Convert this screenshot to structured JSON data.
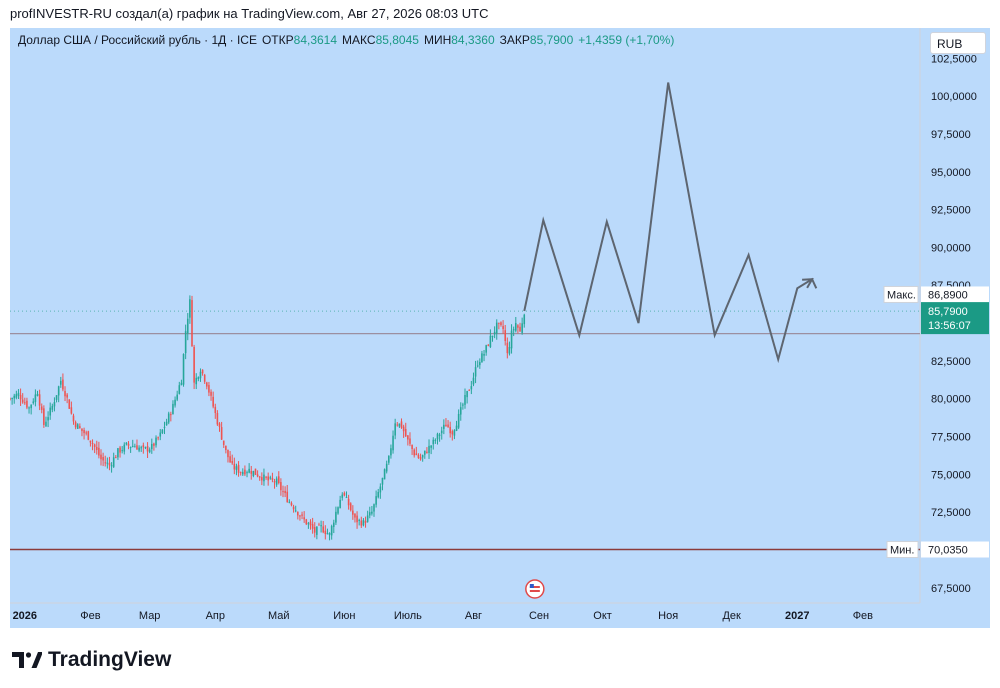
{
  "header": {
    "attribution": "profINVESTR-RU создал(а) график на TradingView.com, Авг 27, 2026 08:03 UTC"
  },
  "legend": {
    "symbol": "Доллар США / Российский рубль · 1Д · ICE",
    "open_label": "ОТКР",
    "open_value": "84,3614",
    "high_label": "МАКС",
    "high_value": "85,8045",
    "low_label": "МИН",
    "low_value": "84,3360",
    "close_label": "ЗАКР",
    "close_value": "85,7900",
    "change": "+1,4359 (+1,70%)"
  },
  "currency_button": "RUB",
  "price_labels": {
    "max_label": "Макс.",
    "max_value": "86,8900",
    "current_value": "85,7900",
    "countdown": "13:56:07",
    "min_label": "Мин.",
    "min_value": "70,0350"
  },
  "logo_text": "TradingView",
  "colors": {
    "background": "#bbdafb",
    "up": "#26a69a",
    "down": "#ef5350",
    "projection": "#5d6570",
    "min_line": "#8b3a3a",
    "level_line": "#9c8fa0",
    "current_badge": "#1b9a85"
  },
  "chart_data": {
    "type": "candlestick",
    "title": "Доллар США / Российский рубль · 1Д · ICE",
    "currency": "RUB",
    "y_ticks": [
      "102,5000",
      "100,0000",
      "97,5000",
      "95,0000",
      "92,5000",
      "90,0000",
      "87,5000",
      "82,5000",
      "80,0000",
      "77,5000",
      "75,0000",
      "72,5000",
      "70,0000",
      "67,5000"
    ],
    "ylim": [
      66.5,
      104.5
    ],
    "x_ticks": [
      {
        "label": "2026",
        "date": "2026-01-01",
        "bold": true
      },
      {
        "label": "Фев",
        "date": "2026-02-01"
      },
      {
        "label": "Мар",
        "date": "2026-03-01"
      },
      {
        "label": "Апр",
        "date": "2026-04-01"
      },
      {
        "label": "Май",
        "date": "2026-05-01"
      },
      {
        "label": "Июн",
        "date": "2026-06-01"
      },
      {
        "label": "Июль",
        "date": "2026-07-01"
      },
      {
        "label": "Авг",
        "date": "2026-08-01"
      },
      {
        "label": "Сен",
        "date": "2026-09-01"
      },
      {
        "label": "Окт",
        "date": "2026-10-01"
      },
      {
        "label": "Ноя",
        "date": "2026-11-01"
      },
      {
        "label": "Дек",
        "date": "2026-12-01"
      },
      {
        "label": "2027",
        "date": "2027-01-01",
        "bold": true
      },
      {
        "label": "Фев",
        "date": "2027-02-01"
      }
    ],
    "xlim": [
      "2025-12-25",
      "2027-02-28"
    ],
    "price_path": [
      {
        "date": "2025-12-25",
        "close": 80.0
      },
      {
        "date": "2025-12-29",
        "close": 80.3
      },
      {
        "date": "2026-01-03",
        "close": 79.4
      },
      {
        "date": "2026-01-07",
        "close": 80.5
      },
      {
        "date": "2026-01-10",
        "close": 78.3
      },
      {
        "date": "2026-01-14",
        "close": 79.5
      },
      {
        "date": "2026-01-18",
        "close": 81.2
      },
      {
        "date": "2026-01-21",
        "close": 80.0
      },
      {
        "date": "2026-01-24",
        "close": 78.5
      },
      {
        "date": "2026-01-27",
        "close": 78.0
      },
      {
        "date": "2026-01-31",
        "close": 77.5
      },
      {
        "date": "2026-02-03",
        "close": 76.8
      },
      {
        "date": "2026-02-06",
        "close": 76.0
      },
      {
        "date": "2026-02-10",
        "close": 75.6
      },
      {
        "date": "2026-02-14",
        "close": 76.5
      },
      {
        "date": "2026-02-18",
        "close": 76.9
      },
      {
        "date": "2026-02-22",
        "close": 76.9
      },
      {
        "date": "2026-02-26",
        "close": 76.6
      },
      {
        "date": "2026-03-02",
        "close": 76.8
      },
      {
        "date": "2026-03-06",
        "close": 77.6
      },
      {
        "date": "2026-03-09",
        "close": 78.5
      },
      {
        "date": "2026-03-12",
        "close": 79.5
      },
      {
        "date": "2026-03-16",
        "close": 81.3
      },
      {
        "date": "2026-03-18",
        "close": 84.5
      },
      {
        "date": "2026-03-20",
        "close": 86.4
      },
      {
        "date": "2026-03-22",
        "close": 81.0
      },
      {
        "date": "2026-03-25",
        "close": 82.0
      },
      {
        "date": "2026-03-28",
        "close": 81.0
      },
      {
        "date": "2026-03-31",
        "close": 79.5
      },
      {
        "date": "2026-04-03",
        "close": 78.0
      },
      {
        "date": "2026-04-06",
        "close": 76.5
      },
      {
        "date": "2026-04-09",
        "close": 75.5
      },
      {
        "date": "2026-04-13",
        "close": 75.2
      },
      {
        "date": "2026-04-17",
        "close": 75.3
      },
      {
        "date": "2026-04-21",
        "close": 75.0
      },
      {
        "date": "2026-04-26",
        "close": 74.6
      },
      {
        "date": "2026-04-30",
        "close": 74.5
      },
      {
        "date": "2026-05-03",
        "close": 73.8
      },
      {
        "date": "2026-05-06",
        "close": 73.2
      },
      {
        "date": "2026-05-09",
        "close": 72.7
      },
      {
        "date": "2026-05-12",
        "close": 72.1
      },
      {
        "date": "2026-05-15",
        "close": 71.7
      },
      {
        "date": "2026-05-18",
        "close": 71.2
      },
      {
        "date": "2026-05-21",
        "close": 71.5
      },
      {
        "date": "2026-05-25",
        "close": 71.0
      },
      {
        "date": "2026-05-28",
        "close": 72.5
      },
      {
        "date": "2026-05-31",
        "close": 73.8
      },
      {
        "date": "2026-06-03",
        "close": 73.0
      },
      {
        "date": "2026-06-06",
        "close": 72.0
      },
      {
        "date": "2026-06-10",
        "close": 71.8
      },
      {
        "date": "2026-06-14",
        "close": 72.5
      },
      {
        "date": "2026-06-18",
        "close": 74.2
      },
      {
        "date": "2026-06-22",
        "close": 76.0
      },
      {
        "date": "2026-06-25",
        "close": 78.5
      },
      {
        "date": "2026-06-28",
        "close": 78.2
      },
      {
        "date": "2026-07-01",
        "close": 77.2
      },
      {
        "date": "2026-07-04",
        "close": 76.4
      },
      {
        "date": "2026-07-07",
        "close": 76.0
      },
      {
        "date": "2026-07-10",
        "close": 76.6
      },
      {
        "date": "2026-07-13",
        "close": 77.1
      },
      {
        "date": "2026-07-16",
        "close": 77.7
      },
      {
        "date": "2026-07-19",
        "close": 78.3
      },
      {
        "date": "2026-07-22",
        "close": 77.8
      },
      {
        "date": "2026-07-25",
        "close": 78.8
      },
      {
        "date": "2026-07-28",
        "close": 80.0
      },
      {
        "date": "2026-07-31",
        "close": 81.0
      },
      {
        "date": "2026-08-03",
        "close": 82.4
      },
      {
        "date": "2026-08-06",
        "close": 83.0
      },
      {
        "date": "2026-08-09",
        "close": 84.0
      },
      {
        "date": "2026-08-12",
        "close": 84.8
      },
      {
        "date": "2026-08-15",
        "close": 84.6
      },
      {
        "date": "2026-08-17",
        "close": 82.9
      },
      {
        "date": "2026-08-19",
        "close": 84.3
      },
      {
        "date": "2026-08-21",
        "close": 85.0
      },
      {
        "date": "2026-08-23",
        "close": 84.4
      },
      {
        "date": "2026-08-25",
        "close": 85.79
      }
    ],
    "projection": [
      {
        "date": "2026-08-25",
        "value": 85.8
      },
      {
        "date": "2026-09-03",
        "value": 91.8
      },
      {
        "date": "2026-09-20",
        "value": 84.2
      },
      {
        "date": "2026-10-03",
        "value": 91.7
      },
      {
        "date": "2026-10-18",
        "value": 85.0
      },
      {
        "date": "2026-11-01",
        "value": 100.9
      },
      {
        "date": "2026-11-23",
        "value": 84.2
      },
      {
        "date": "2026-12-09",
        "value": 89.5
      },
      {
        "date": "2026-12-23",
        "value": 82.6
      },
      {
        "date": "2027-01-01",
        "value": 87.3
      },
      {
        "date": "2027-01-08",
        "value": 87.9
      },
      {
        "date": "2027-01-10",
        "value": 87.3
      }
    ],
    "levels": {
      "max": 86.89,
      "current": 85.79,
      "min": 70.035,
      "horizontal_line": 84.3
    },
    "grid": false
  }
}
